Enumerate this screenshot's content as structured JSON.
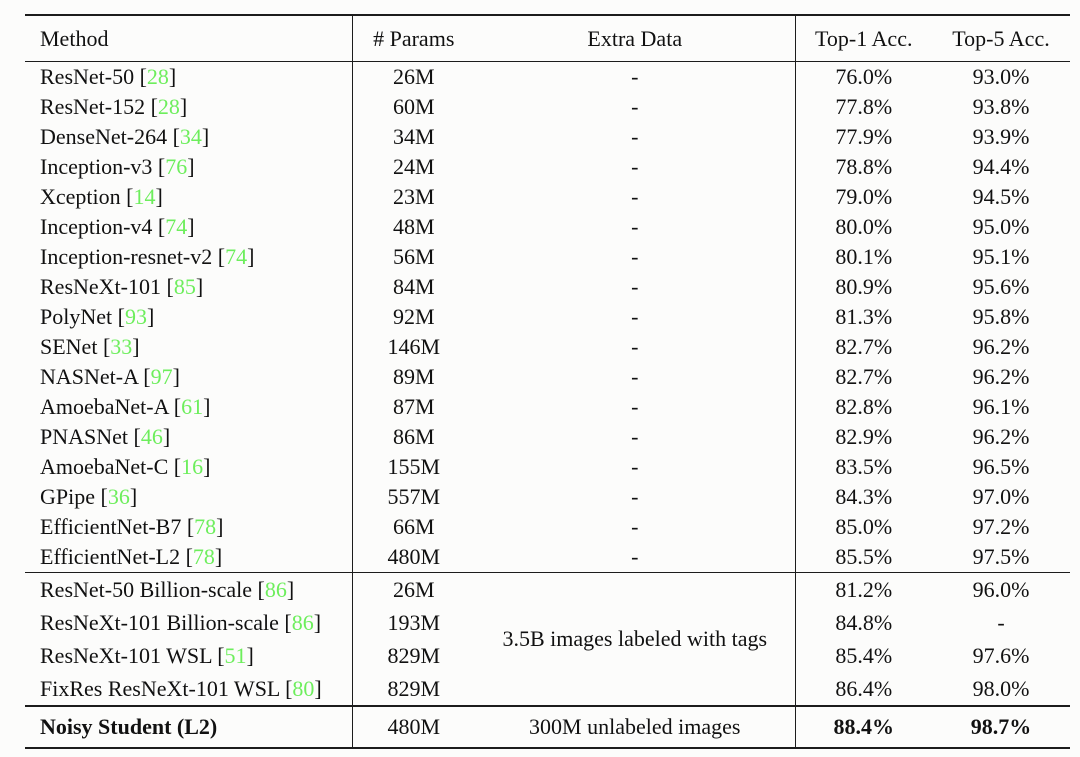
{
  "theme": {
    "background": "#fcfcfb",
    "text": "#111111",
    "rule": "#1c1c1c",
    "citation_color": "#6dee5c"
  },
  "table": {
    "cite_open": "[",
    "cite_close": "]",
    "headers": {
      "method": "Method",
      "params": "# Params",
      "extra": "Extra Data",
      "top1": "Top-1 Acc.",
      "top5": "Top-5 Acc."
    },
    "sections": [
      {
        "name": "imagenet-only-models",
        "rows": [
          {
            "method": "ResNet-50",
            "cite": "28",
            "params": "26M",
            "extra": "-",
            "top1": "76.0%",
            "top5": "93.0%"
          },
          {
            "method": "ResNet-152",
            "cite": "28",
            "params": "60M",
            "extra": "-",
            "top1": "77.8%",
            "top5": "93.8%"
          },
          {
            "method": "DenseNet-264",
            "cite": "34",
            "params": "34M",
            "extra": "-",
            "top1": "77.9%",
            "top5": "93.9%"
          },
          {
            "method": "Inception-v3",
            "cite": "76",
            "params": "24M",
            "extra": "-",
            "top1": "78.8%",
            "top5": "94.4%"
          },
          {
            "method": "Xception",
            "cite": "14",
            "params": "23M",
            "extra": "-",
            "top1": "79.0%",
            "top5": "94.5%"
          },
          {
            "method": "Inception-v4",
            "cite": "74",
            "params": "48M",
            "extra": "-",
            "top1": "80.0%",
            "top5": "95.0%"
          },
          {
            "method": "Inception-resnet-v2",
            "cite": "74",
            "params": "56M",
            "extra": "-",
            "top1": "80.1%",
            "top5": "95.1%"
          },
          {
            "method": "ResNeXt-101",
            "cite": "85",
            "params": "84M",
            "extra": "-",
            "top1": "80.9%",
            "top5": "95.6%"
          },
          {
            "method": "PolyNet",
            "cite": "93",
            "params": "92M",
            "extra": "-",
            "top1": "81.3%",
            "top5": "95.8%"
          },
          {
            "method": "SENet",
            "cite": "33",
            "params": "146M",
            "extra": "-",
            "top1": "82.7%",
            "top5": "96.2%"
          },
          {
            "method": "NASNet-A",
            "cite": "97",
            "params": "89M",
            "extra": "-",
            "top1": "82.7%",
            "top5": "96.2%"
          },
          {
            "method": "AmoebaNet-A",
            "cite": "61",
            "params": "87M",
            "extra": "-",
            "top1": "82.8%",
            "top5": "96.1%"
          },
          {
            "method": "PNASNet",
            "cite": "46",
            "params": "86M",
            "extra": "-",
            "top1": "82.9%",
            "top5": "96.2%"
          },
          {
            "method": "AmoebaNet-C",
            "cite": "16",
            "params": "155M",
            "extra": "-",
            "top1": "83.5%",
            "top5": "96.5%"
          },
          {
            "method": "GPipe",
            "cite": "36",
            "params": "557M",
            "extra": "-",
            "top1": "84.3%",
            "top5": "97.0%"
          },
          {
            "method": "EfficientNet-B7",
            "cite": "78",
            "params": "66M",
            "extra": "-",
            "top1": "85.0%",
            "top5": "97.2%"
          },
          {
            "method": "EfficientNet-L2",
            "cite": "78",
            "params": "480M",
            "extra": "-",
            "top1": "85.5%",
            "top5": "97.5%"
          }
        ]
      },
      {
        "name": "weakly-supervised-models",
        "extra_merged": "3.5B images labeled with tags",
        "rows": [
          {
            "method": "ResNet-50 Billion-scale",
            "cite": "86",
            "params": "26M",
            "top1": "81.2%",
            "top5": "96.0%"
          },
          {
            "method": "ResNeXt-101 Billion-scale",
            "cite": "86",
            "params": "193M",
            "top1": "84.8%",
            "top5": "-"
          },
          {
            "method": "ResNeXt-101 WSL",
            "cite": "51",
            "params": "829M",
            "top1": "85.4%",
            "top5": "97.6%"
          },
          {
            "method": "FixRes ResNeXt-101 WSL",
            "cite": "80",
            "params": "829M",
            "top1": "86.4%",
            "top5": "98.0%"
          }
        ]
      },
      {
        "name": "noisy-student-result",
        "bold": true,
        "rows": [
          {
            "method": "Noisy Student (L2)",
            "params": "480M",
            "extra": "300M unlabeled images",
            "top1": "88.4%",
            "top5": "98.7%"
          }
        ]
      }
    ]
  }
}
